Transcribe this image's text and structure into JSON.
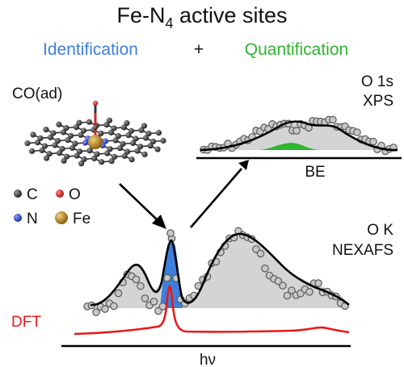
{
  "title": {
    "main": "Fe-N",
    "sub": "4",
    "rest": " active sites"
  },
  "subtitle": {
    "identification": "Identification",
    "plus": "+",
    "quantification": "Quantification"
  },
  "colors": {
    "identification": "#3d7fdc",
    "quantification": "#2fb52f",
    "dft": "#e8191b",
    "carbon": "#3a3a3a",
    "oxygen": "#d62020",
    "nitrogen": "#2b3fd6",
    "iron": "#c9962a",
    "shading": "#d4d4d4"
  },
  "molecule": {
    "label": "CO(ad)"
  },
  "legend": [
    {
      "symbol": "C",
      "atom": "carbon"
    },
    {
      "symbol": "O",
      "atom": "oxygen"
    },
    {
      "symbol": "N",
      "atom": "nitrogen"
    },
    {
      "symbol": "Fe",
      "atom": "iron"
    }
  ],
  "xps": {
    "label_line1": "O 1s",
    "label_line2": "XPS",
    "axis_label": "BE"
  },
  "nexafs": {
    "label_line1": "O K",
    "label_line2": "NEXAFS",
    "axis_label": "hν",
    "dft_label": "DFT"
  }
}
